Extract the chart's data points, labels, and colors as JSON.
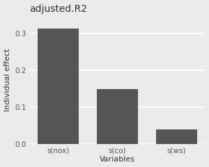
{
  "categories": [
    "s(nox)",
    "s(co)",
    "s(ws)"
  ],
  "values": [
    0.315,
    0.15,
    0.04
  ],
  "bar_color": "#555555",
  "title": "adjusted.R2",
  "xlabel": "Variables",
  "ylabel": "Individual effect",
  "ylim": [
    0,
    0.35
  ],
  "yticks": [
    0.0,
    0.1,
    0.2,
    0.3
  ],
  "plot_bg_color": "#ebebeb",
  "fig_bg_color": "#ebebeb",
  "grid_color": "#ffffff",
  "bar_width": 0.7,
  "title_fontsize": 10,
  "axis_label_fontsize": 8,
  "tick_fontsize": 7.5
}
